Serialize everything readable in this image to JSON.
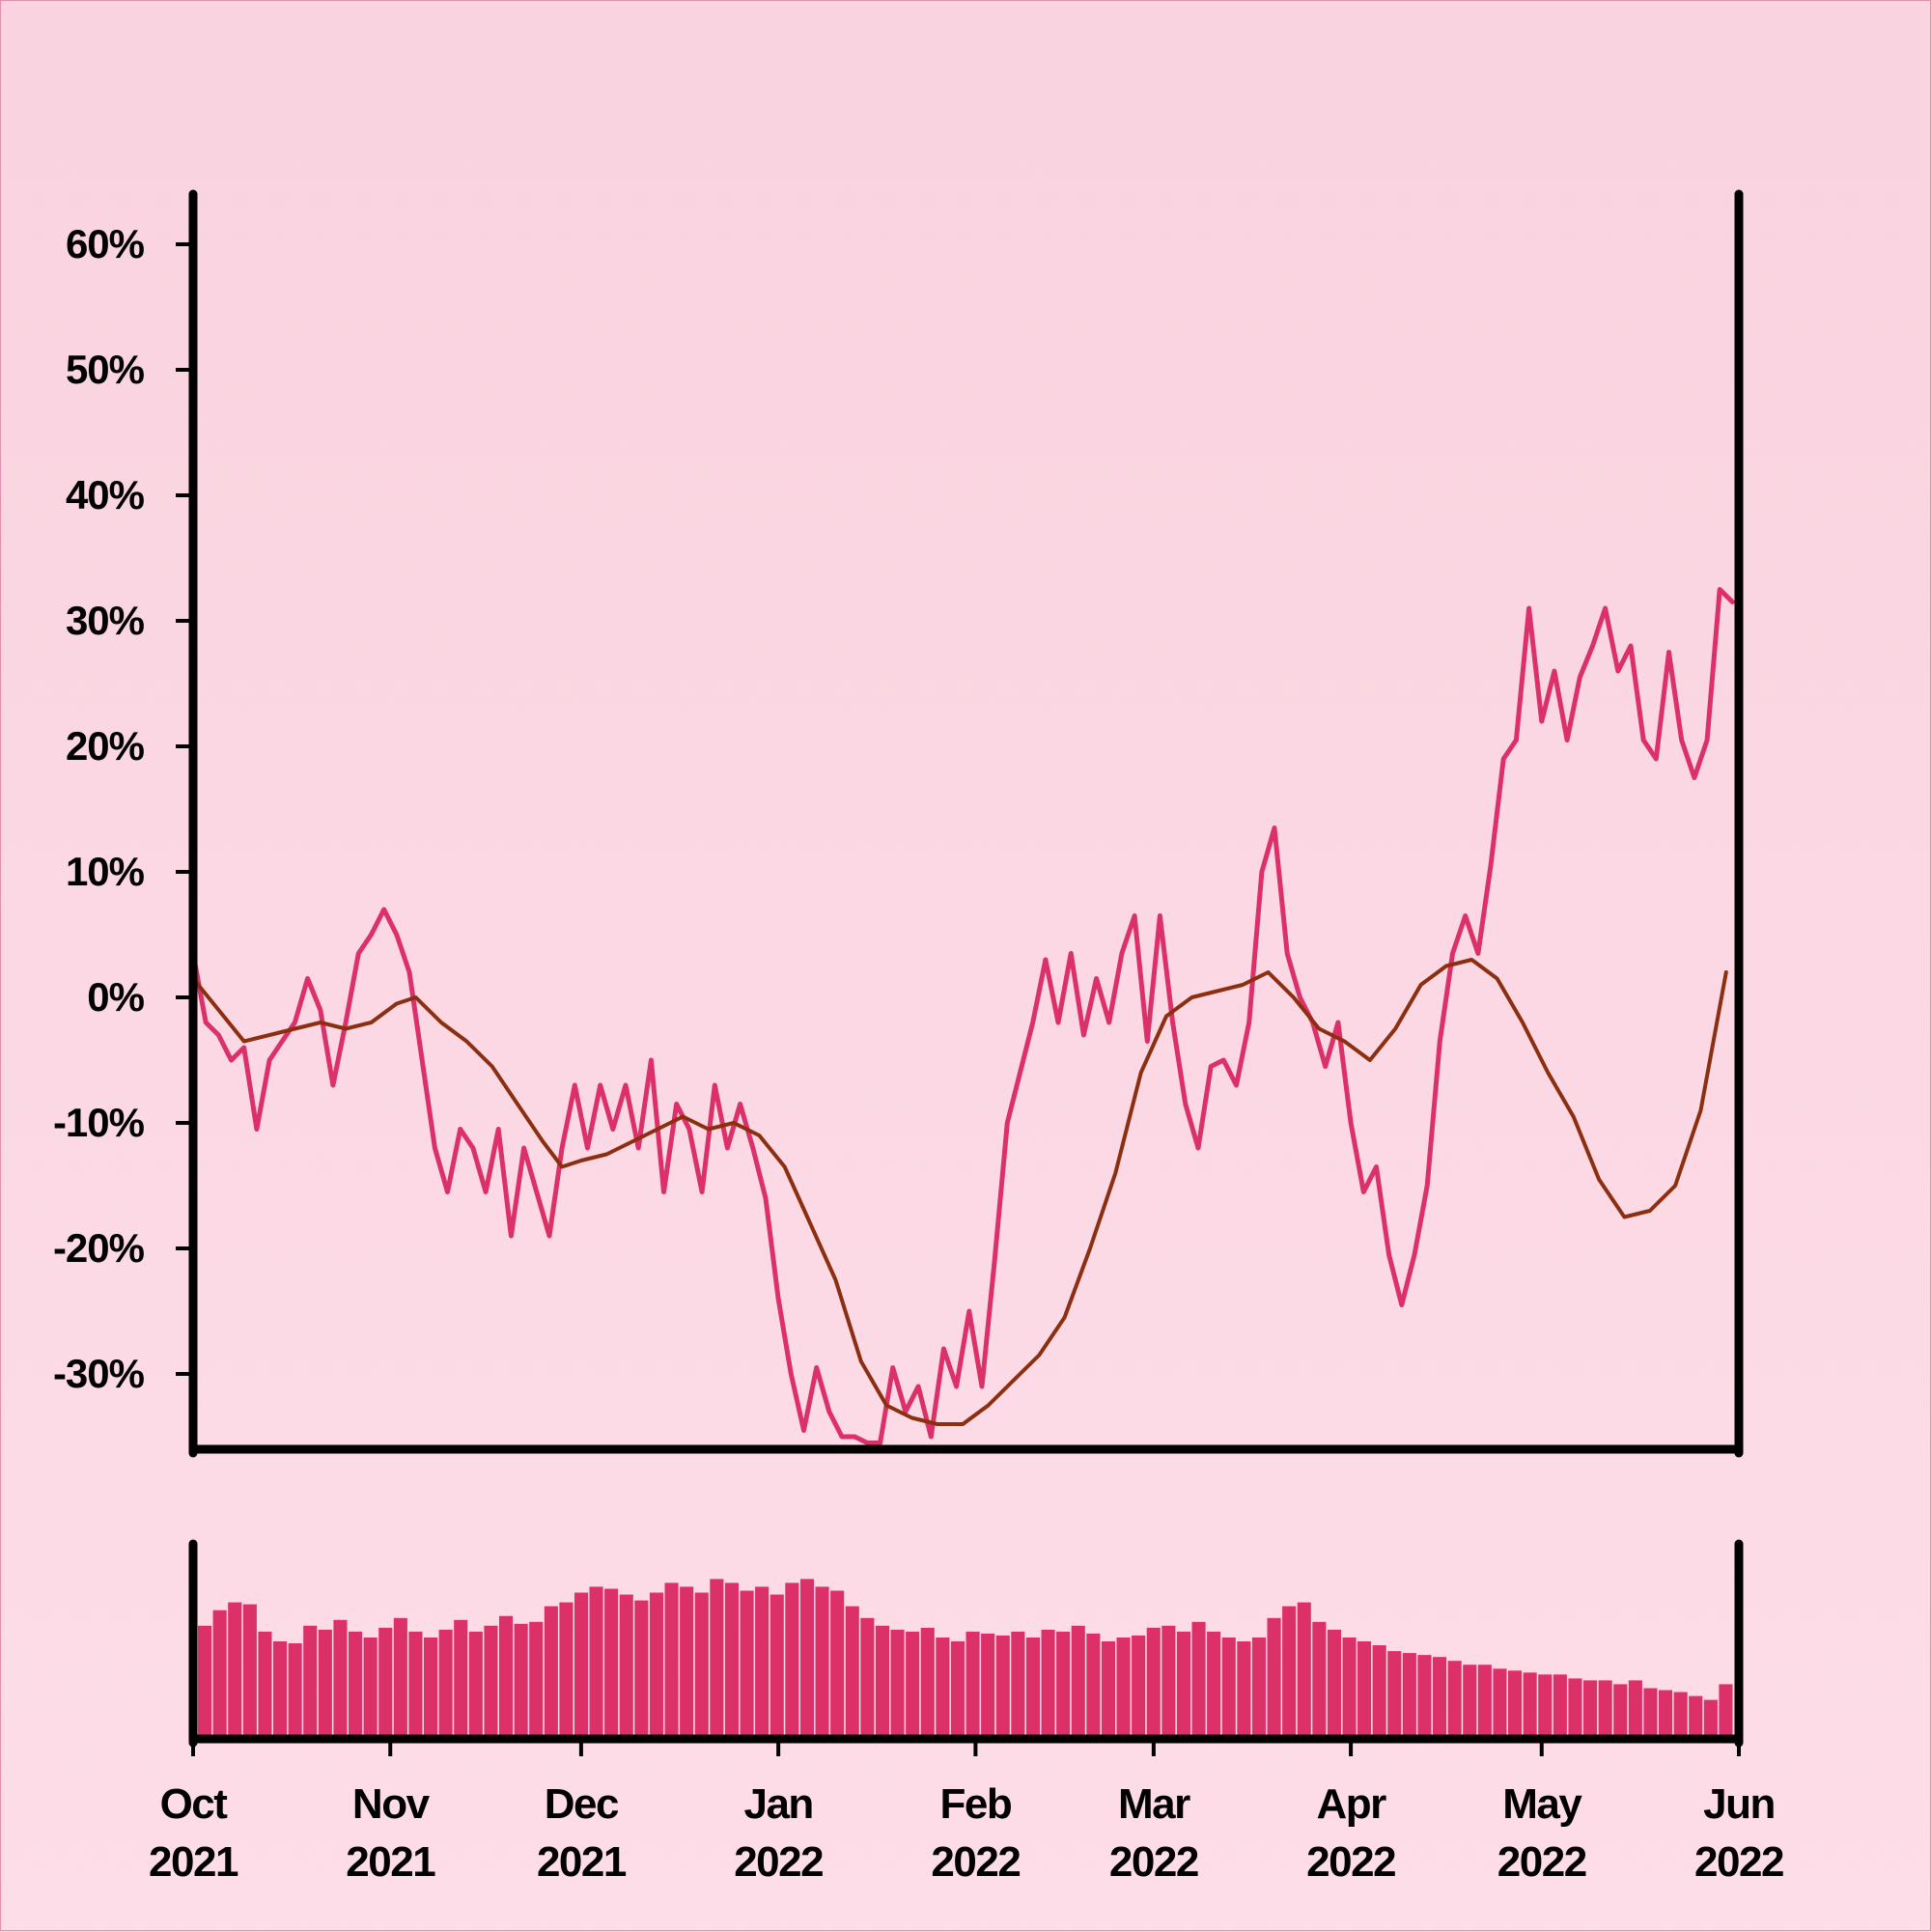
{
  "chart_data": [
    {
      "panel": "price",
      "type": "line",
      "title": "",
      "xlabel": "",
      "ylabel": "",
      "xlim": [
        "2021-10-01",
        "2022-06-01"
      ],
      "ylim": [
        -0.36,
        0.64
      ],
      "ytick_values": [
        -0.3,
        -0.2,
        -0.1,
        0,
        0.1,
        0.2,
        0.3,
        0.4,
        0.5,
        0.6
      ],
      "ytick_labels": [
        "-30%",
        "-20%",
        "-10%",
        "0%",
        "10%",
        "20%",
        "30%",
        "40%",
        "50%",
        "60%"
      ],
      "grid": false,
      "legend": "none",
      "series": [
        {
          "role": "cumulative return",
          "color": "#dc3068",
          "points": [
            [
              "2021-10-01",
              0.035
            ],
            [
              "2021-10-03",
              -0.02
            ],
            [
              "2021-10-05",
              -0.03
            ],
            [
              "2021-10-07",
              -0.05
            ],
            [
              "2021-10-09",
              -0.04
            ],
            [
              "2021-10-11",
              -0.105
            ],
            [
              "2021-10-13",
              -0.05
            ],
            [
              "2021-10-15",
              -0.035
            ],
            [
              "2021-10-17",
              -0.02
            ],
            [
              "2021-10-19",
              0.015
            ],
            [
              "2021-10-21",
              -0.01
            ],
            [
              "2021-10-23",
              -0.07
            ],
            [
              "2021-10-25",
              -0.02
            ],
            [
              "2021-10-27",
              0.035
            ],
            [
              "2021-10-29",
              0.05
            ],
            [
              "2021-10-31",
              0.07
            ],
            [
              "2021-11-02",
              0.05
            ],
            [
              "2021-11-04",
              0.02
            ],
            [
              "2021-11-06",
              -0.05
            ],
            [
              "2021-11-08",
              -0.12
            ],
            [
              "2021-11-10",
              -0.155
            ],
            [
              "2021-11-12",
              -0.105
            ],
            [
              "2021-11-14",
              -0.12
            ],
            [
              "2021-11-16",
              -0.155
            ],
            [
              "2021-11-18",
              -0.105
            ],
            [
              "2021-11-20",
              -0.19
            ],
            [
              "2021-11-22",
              -0.12
            ],
            [
              "2021-11-24",
              -0.155
            ],
            [
              "2021-11-26",
              -0.19
            ],
            [
              "2021-11-28",
              -0.12
            ],
            [
              "2021-11-30",
              -0.07
            ],
            [
              "2021-12-02",
              -0.12
            ],
            [
              "2021-12-04",
              -0.07
            ],
            [
              "2021-12-06",
              -0.105
            ],
            [
              "2021-12-08",
              -0.07
            ],
            [
              "2021-12-10",
              -0.12
            ],
            [
              "2021-12-12",
              -0.05
            ],
            [
              "2021-12-14",
              -0.155
            ],
            [
              "2021-12-16",
              -0.085
            ],
            [
              "2021-12-18",
              -0.105
            ],
            [
              "2021-12-20",
              -0.155
            ],
            [
              "2021-12-22",
              -0.07
            ],
            [
              "2021-12-24",
              -0.12
            ],
            [
              "2021-12-26",
              -0.085
            ],
            [
              "2021-12-28",
              -0.12
            ],
            [
              "2021-12-30",
              -0.16
            ],
            [
              "2022-01-01",
              -0.24
            ],
            [
              "2022-01-03",
              -0.3
            ],
            [
              "2022-01-05",
              -0.345
            ],
            [
              "2022-01-07",
              -0.295
            ],
            [
              "2022-01-09",
              -0.33
            ],
            [
              "2022-01-11",
              -0.35
            ],
            [
              "2022-01-13",
              -0.35
            ],
            [
              "2022-01-15",
              -0.355
            ],
            [
              "2022-01-17",
              -0.355
            ],
            [
              "2022-01-19",
              -0.295
            ],
            [
              "2022-01-21",
              -0.33
            ],
            [
              "2022-01-23",
              -0.31
            ],
            [
              "2022-01-25",
              -0.35
            ],
            [
              "2022-01-27",
              -0.28
            ],
            [
              "2022-01-29",
              -0.31
            ],
            [
              "2022-01-31",
              -0.25
            ],
            [
              "2022-02-02",
              -0.31
            ],
            [
              "2022-02-04",
              -0.21
            ],
            [
              "2022-02-06",
              -0.1
            ],
            [
              "2022-02-08",
              -0.06
            ],
            [
              "2022-02-10",
              -0.02
            ],
            [
              "2022-02-12",
              0.03
            ],
            [
              "2022-02-14",
              -0.02
            ],
            [
              "2022-02-16",
              0.035
            ],
            [
              "2022-02-18",
              -0.03
            ],
            [
              "2022-02-20",
              0.015
            ],
            [
              "2022-02-22",
              -0.02
            ],
            [
              "2022-02-24",
              0.035
            ],
            [
              "2022-02-26",
              0.065
            ],
            [
              "2022-02-28",
              -0.035
            ],
            [
              "2022-03-02",
              0.065
            ],
            [
              "2022-03-04",
              -0.02
            ],
            [
              "2022-03-06",
              -0.085
            ],
            [
              "2022-03-08",
              -0.12
            ],
            [
              "2022-03-10",
              -0.055
            ],
            [
              "2022-03-12",
              -0.05
            ],
            [
              "2022-03-14",
              -0.07
            ],
            [
              "2022-03-16",
              -0.02
            ],
            [
              "2022-03-18",
              0.1
            ],
            [
              "2022-03-20",
              0.135
            ],
            [
              "2022-03-22",
              0.035
            ],
            [
              "2022-03-24",
              0.0
            ],
            [
              "2022-03-26",
              -0.02
            ],
            [
              "2022-03-28",
              -0.055
            ],
            [
              "2022-03-30",
              -0.02
            ],
            [
              "2022-04-01",
              -0.1
            ],
            [
              "2022-04-03",
              -0.155
            ],
            [
              "2022-04-05",
              -0.135
            ],
            [
              "2022-04-07",
              -0.205
            ],
            [
              "2022-04-09",
              -0.245
            ],
            [
              "2022-04-11",
              -0.205
            ],
            [
              "2022-04-13",
              -0.15
            ],
            [
              "2022-04-15",
              -0.035
            ],
            [
              "2022-04-17",
              0.035
            ],
            [
              "2022-04-19",
              0.065
            ],
            [
              "2022-04-21",
              0.035
            ],
            [
              "2022-04-23",
              0.105
            ],
            [
              "2022-04-25",
              0.19
            ],
            [
              "2022-04-27",
              0.205
            ],
            [
              "2022-04-29",
              0.31
            ],
            [
              "2022-05-01",
              0.22
            ],
            [
              "2022-05-03",
              0.26
            ],
            [
              "2022-05-05",
              0.205
            ],
            [
              "2022-05-07",
              0.255
            ],
            [
              "2022-05-09",
              0.28
            ],
            [
              "2022-05-11",
              0.31
            ],
            [
              "2022-05-13",
              0.26
            ],
            [
              "2022-05-15",
              0.28
            ],
            [
              "2022-05-17",
              0.205
            ],
            [
              "2022-05-19",
              0.19
            ],
            [
              "2022-05-21",
              0.275
            ],
            [
              "2022-05-23",
              0.205
            ],
            [
              "2022-05-25",
              0.175
            ],
            [
              "2022-05-27",
              0.205
            ],
            [
              "2022-05-29",
              0.325
            ],
            [
              "2022-05-31",
              0.315
            ]
          ]
        },
        {
          "role": "moving average",
          "color": "#8b2f10",
          "points": [
            [
              "2021-10-01",
              0.015
            ],
            [
              "2021-10-05",
              -0.01
            ],
            [
              "2021-10-09",
              -0.035
            ],
            [
              "2021-10-13",
              -0.03
            ],
            [
              "2021-10-17",
              -0.025
            ],
            [
              "2021-10-21",
              -0.02
            ],
            [
              "2021-10-25",
              -0.025
            ],
            [
              "2021-10-29",
              -0.02
            ],
            [
              "2021-11-02",
              -0.005
            ],
            [
              "2021-11-05",
              0.0
            ],
            [
              "2021-11-09",
              -0.02
            ],
            [
              "2021-11-13",
              -0.035
            ],
            [
              "2021-11-17",
              -0.055
            ],
            [
              "2021-11-21",
              -0.085
            ],
            [
              "2021-11-25",
              -0.115
            ],
            [
              "2021-11-28",
              -0.135
            ],
            [
              "2021-12-01",
              -0.13
            ],
            [
              "2021-12-05",
              -0.125
            ],
            [
              "2021-12-09",
              -0.115
            ],
            [
              "2021-12-13",
              -0.105
            ],
            [
              "2021-12-17",
              -0.095
            ],
            [
              "2021-12-21",
              -0.105
            ],
            [
              "2021-12-25",
              -0.1
            ],
            [
              "2021-12-29",
              -0.11
            ],
            [
              "2022-01-02",
              -0.135
            ],
            [
              "2022-01-06",
              -0.18
            ],
            [
              "2022-01-10",
              -0.225
            ],
            [
              "2022-01-14",
              -0.29
            ],
            [
              "2022-01-18",
              -0.325
            ],
            [
              "2022-01-22",
              -0.335
            ],
            [
              "2022-01-26",
              -0.34
            ],
            [
              "2022-01-30",
              -0.34
            ],
            [
              "2022-02-03",
              -0.325
            ],
            [
              "2022-02-07",
              -0.305
            ],
            [
              "2022-02-11",
              -0.285
            ],
            [
              "2022-02-15",
              -0.255
            ],
            [
              "2022-02-19",
              -0.2
            ],
            [
              "2022-02-23",
              -0.14
            ],
            [
              "2022-02-27",
              -0.06
            ],
            [
              "2022-03-03",
              -0.015
            ],
            [
              "2022-03-07",
              0.0
            ],
            [
              "2022-03-11",
              0.005
            ],
            [
              "2022-03-15",
              0.01
            ],
            [
              "2022-03-19",
              0.02
            ],
            [
              "2022-03-23",
              0.0
            ],
            [
              "2022-03-27",
              -0.025
            ],
            [
              "2022-03-31",
              -0.035
            ],
            [
              "2022-04-04",
              -0.05
            ],
            [
              "2022-04-08",
              -0.025
            ],
            [
              "2022-04-12",
              0.01
            ],
            [
              "2022-04-16",
              0.025
            ],
            [
              "2022-04-20",
              0.03
            ],
            [
              "2022-04-24",
              0.015
            ],
            [
              "2022-04-28",
              -0.02
            ],
            [
              "2022-05-02",
              -0.06
            ],
            [
              "2022-05-06",
              -0.095
            ],
            [
              "2022-05-10",
              -0.145
            ],
            [
              "2022-05-14",
              -0.175
            ],
            [
              "2022-05-18",
              -0.17
            ],
            [
              "2022-05-22",
              -0.15
            ],
            [
              "2022-05-26",
              -0.09
            ],
            [
              "2022-05-30",
              0.02
            ]
          ]
        }
      ]
    },
    {
      "panel": "volume",
      "type": "bar",
      "title": "",
      "color": "#dc3068",
      "xlim": [
        "2021-10-01",
        "2022-06-01"
      ],
      "xtick_dates": [
        "2021-10-01",
        "2021-11-01",
        "2021-12-01",
        "2022-01-01",
        "2022-02-01",
        "2022-03-01",
        "2022-04-01",
        "2022-05-01",
        "2022-06-01"
      ],
      "xtick_labels": [
        [
          "Oct",
          "2021"
        ],
        [
          "Nov",
          "2021"
        ],
        [
          "Dec",
          "2021"
        ],
        [
          "Jan",
          "2022"
        ],
        [
          "Feb",
          "2022"
        ],
        [
          "Mar",
          "2022"
        ],
        [
          "Apr",
          "2022"
        ],
        [
          "May",
          "2022"
        ],
        [
          "Jun",
          "2022"
        ]
      ],
      "ylim": [
        0,
        1
      ],
      "values_relative": [
        0.58,
        0.66,
        0.7,
        0.69,
        0.55,
        0.5,
        0.49,
        0.58,
        0.56,
        0.61,
        0.55,
        0.52,
        0.57,
        0.62,
        0.55,
        0.52,
        0.56,
        0.61,
        0.55,
        0.58,
        0.63,
        0.59,
        0.6,
        0.68,
        0.7,
        0.75,
        0.78,
        0.77,
        0.74,
        0.71,
        0.75,
        0.8,
        0.78,
        0.75,
        0.82,
        0.8,
        0.76,
        0.78,
        0.74,
        0.8,
        0.82,
        0.78,
        0.76,
        0.68,
        0.62,
        0.58,
        0.56,
        0.55,
        0.57,
        0.52,
        0.5,
        0.55,
        0.54,
        0.53,
        0.55,
        0.52,
        0.56,
        0.55,
        0.58,
        0.54,
        0.5,
        0.52,
        0.53,
        0.57,
        0.58,
        0.55,
        0.6,
        0.55,
        0.52,
        0.5,
        0.52,
        0.62,
        0.68,
        0.7,
        0.6,
        0.56,
        0.52,
        0.5,
        0.48,
        0.45,
        0.44,
        0.43,
        0.42,
        0.4,
        0.38,
        0.38,
        0.36,
        0.35,
        0.34,
        0.33,
        0.33,
        0.31,
        0.3,
        0.3,
        0.28,
        0.3,
        0.26,
        0.25,
        0.24,
        0.22,
        0.2,
        0.28
      ]
    }
  ]
}
